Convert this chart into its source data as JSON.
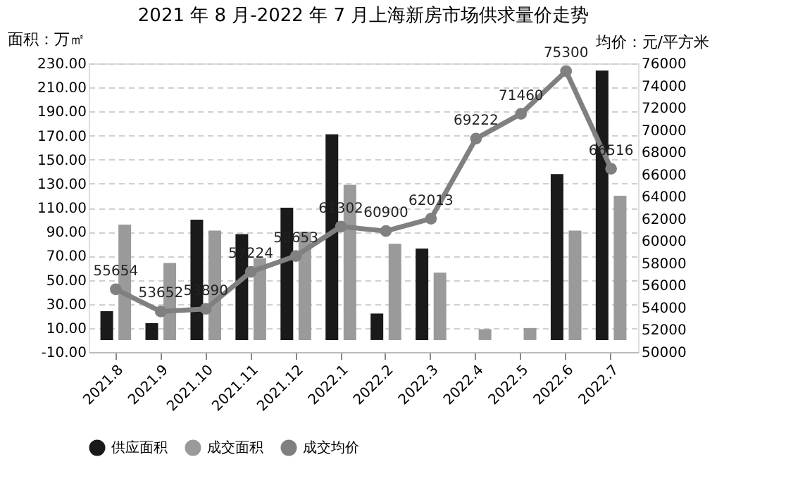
{
  "chart_data": {
    "type": "bar",
    "title": "2021 年 8 月-2022 年 7 月上海新房市场供求量价走势",
    "ylabel": "面积：万㎡",
    "y2label": "均价：元/平方米",
    "categories": [
      "2021.8",
      "2021.9",
      "2021.10",
      "2021.11",
      "2021.12",
      "2022.1",
      "2022.2",
      "2022.3",
      "2022.4",
      "2022.5",
      "2022.6",
      "2022.7"
    ],
    "series": [
      {
        "name": "供应面积",
        "color": "#1a1a1a",
        "values": [
          24,
          14,
          100,
          88,
          110,
          171,
          22,
          76,
          0,
          0,
          138,
          224
        ]
      },
      {
        "name": "成交面积",
        "color": "#9a9a9a",
        "values": [
          96,
          64,
          91,
          68,
          90,
          129,
          80,
          56,
          9,
          10,
          91,
          120
        ]
      },
      {
        "name": "成交均价",
        "type": "line",
        "axis": "y2",
        "color": "#808080",
        "marker": "circle",
        "data_labels": true,
        "values": [
          55654,
          53652,
          53890,
          57224,
          58653,
          61302,
          60900,
          62013,
          69222,
          71460,
          75300,
          66516
        ]
      }
    ],
    "ylim": [
      -10,
      230
    ],
    "yticks": [
      {
        "value": -10,
        "label": "-10.00"
      },
      {
        "value": 10,
        "label": "10.00"
      },
      {
        "value": 30,
        "label": "30.00"
      },
      {
        "value": 50,
        "label": "50.00"
      },
      {
        "value": 70,
        "label": "70.00"
      },
      {
        "value": 90,
        "label": "90.00"
      },
      {
        "value": 110,
        "label": "110.00"
      },
      {
        "value": 130,
        "label": "130.00"
      },
      {
        "value": 150,
        "label": "150.00"
      },
      {
        "value": 170,
        "label": "170.00"
      },
      {
        "value": 190,
        "label": "190.00"
      },
      {
        "value": 210,
        "label": "210.00"
      },
      {
        "value": 230,
        "label": "230.00"
      }
    ],
    "y2lim": [
      50000,
      76000
    ],
    "y2ticks": [
      50000,
      52000,
      54000,
      56000,
      58000,
      60000,
      62000,
      64000,
      66000,
      68000,
      70000,
      72000,
      74000,
      76000
    ],
    "grid": "y",
    "legend": "bottom"
  }
}
